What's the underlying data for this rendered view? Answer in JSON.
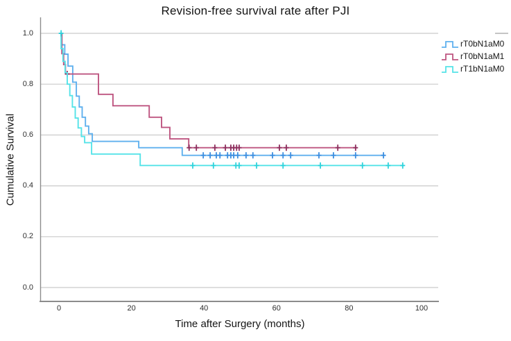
{
  "title": "Revision-free survival rate after PJI",
  "x_axis": {
    "label": "Time after Surgery (months)",
    "ticks": [
      "0",
      "20",
      "40",
      "60",
      "80",
      "100"
    ]
  },
  "y_axis": {
    "label": "Cumulative Survival",
    "ticks": [
      "1.0",
      "0.8",
      "0.6",
      "0.4",
      "0.2",
      "0.0"
    ]
  },
  "legend": {
    "entries": [
      {
        "label": "rT0bN1aM0",
        "color": "#5FB0EE"
      },
      {
        "label": "rT0bN1aM1",
        "color": "#BE5580"
      },
      {
        "label": "rT1bN1aM0",
        "color": "#55E3E8"
      }
    ]
  },
  "colors": {
    "gridline": "#cacaca",
    "axis": "#8c8c8c",
    "text": "#141414"
  },
  "chart_data": {
    "type": "line",
    "subtype": "kaplan-meier-step",
    "title": "Revision-free survival rate after PJI",
    "xlabel": "Time after Surgery (months)",
    "ylabel": "Cumulative Survival",
    "xlim": [
      -5,
      105
    ],
    "ylim": [
      0.0,
      1.0
    ],
    "xticks": [
      0,
      20,
      40,
      60,
      80,
      100
    ],
    "yticks": [
      1.0,
      0.8,
      0.6,
      0.4,
      0.2,
      0.0
    ],
    "grid": "horizontal",
    "legend_position": "right",
    "series": [
      {
        "name": "rT0bN1aM0",
        "color": "#5FB0EE",
        "censor_color": "#3C8EE0",
        "end_time": 89.9,
        "steps": [
          [
            0,
            1.0
          ],
          [
            0.8,
            0.955
          ],
          [
            1.6,
            0.918
          ],
          [
            2.5,
            0.871
          ],
          [
            3.8,
            0.808
          ],
          [
            4.8,
            0.753
          ],
          [
            5.6,
            0.71
          ],
          [
            6.4,
            0.67
          ],
          [
            7.3,
            0.635
          ],
          [
            8.2,
            0.605
          ],
          [
            9.2,
            0.575
          ],
          [
            22,
            0.55
          ],
          [
            34,
            0.52
          ]
        ],
        "censors": [
          [
            39.8,
            0.52
          ],
          [
            41.7,
            0.52
          ],
          [
            43.4,
            0.52
          ],
          [
            44.4,
            0.52
          ],
          [
            46.5,
            0.52
          ],
          [
            47.4,
            0.52
          ],
          [
            48.2,
            0.52
          ],
          [
            49.3,
            0.52
          ],
          [
            51.6,
            0.52
          ],
          [
            53.5,
            0.52
          ],
          [
            58.9,
            0.52
          ],
          [
            61.8,
            0.52
          ],
          [
            63.9,
            0.52
          ],
          [
            71.7,
            0.52
          ],
          [
            75.7,
            0.52
          ],
          [
            81.8,
            0.52
          ],
          [
            89.5,
            0.52
          ]
        ]
      },
      {
        "name": "rT0bN1aM1",
        "color": "#BE5580",
        "censor_color": "#8E2F5E",
        "end_time": 82.2,
        "steps": [
          [
            0,
            1.0
          ],
          [
            0.8,
            0.92
          ],
          [
            1.3,
            0.877
          ],
          [
            1.8,
            0.84
          ],
          [
            10.9,
            0.76
          ],
          [
            14.9,
            0.715
          ],
          [
            24.9,
            0.67
          ],
          [
            28.3,
            0.63
          ],
          [
            30.6,
            0.585
          ],
          [
            35.8,
            0.55
          ]
        ],
        "censors": [
          [
            2.3,
            0.84
          ],
          [
            35.9,
            0.55
          ],
          [
            37.9,
            0.55
          ],
          [
            43.0,
            0.55
          ],
          [
            45.9,
            0.55
          ],
          [
            47.4,
            0.55
          ],
          [
            48.2,
            0.55
          ],
          [
            49.0,
            0.55
          ],
          [
            49.7,
            0.55
          ],
          [
            60.8,
            0.55
          ],
          [
            62.7,
            0.55
          ],
          [
            76.9,
            0.55
          ],
          [
            81.8,
            0.55
          ]
        ]
      },
      {
        "name": "rT1bN1aM0",
        "color": "#55E3E8",
        "censor_color": "#2FD3DC",
        "end_time": 95.2,
        "steps": [
          [
            0,
            1.0
          ],
          [
            0.6,
            0.94
          ],
          [
            1.1,
            0.89
          ],
          [
            1.7,
            0.845
          ],
          [
            2.3,
            0.8
          ],
          [
            3.0,
            0.755
          ],
          [
            3.7,
            0.71
          ],
          [
            4.5,
            0.667
          ],
          [
            5.3,
            0.628
          ],
          [
            6.2,
            0.594
          ],
          [
            7.1,
            0.57
          ],
          [
            9.0,
            0.525
          ],
          [
            22.4,
            0.48
          ]
        ],
        "censors": [
          [
            0.6,
            1.0
          ],
          [
            36.9,
            0.48
          ],
          [
            42.6,
            0.48
          ],
          [
            48.8,
            0.48
          ],
          [
            49.7,
            0.48
          ],
          [
            54.5,
            0.48
          ],
          [
            61.8,
            0.48
          ],
          [
            72.1,
            0.48
          ],
          [
            83.7,
            0.48
          ],
          [
            90.8,
            0.48
          ],
          [
            94.8,
            0.48
          ]
        ]
      }
    ]
  }
}
